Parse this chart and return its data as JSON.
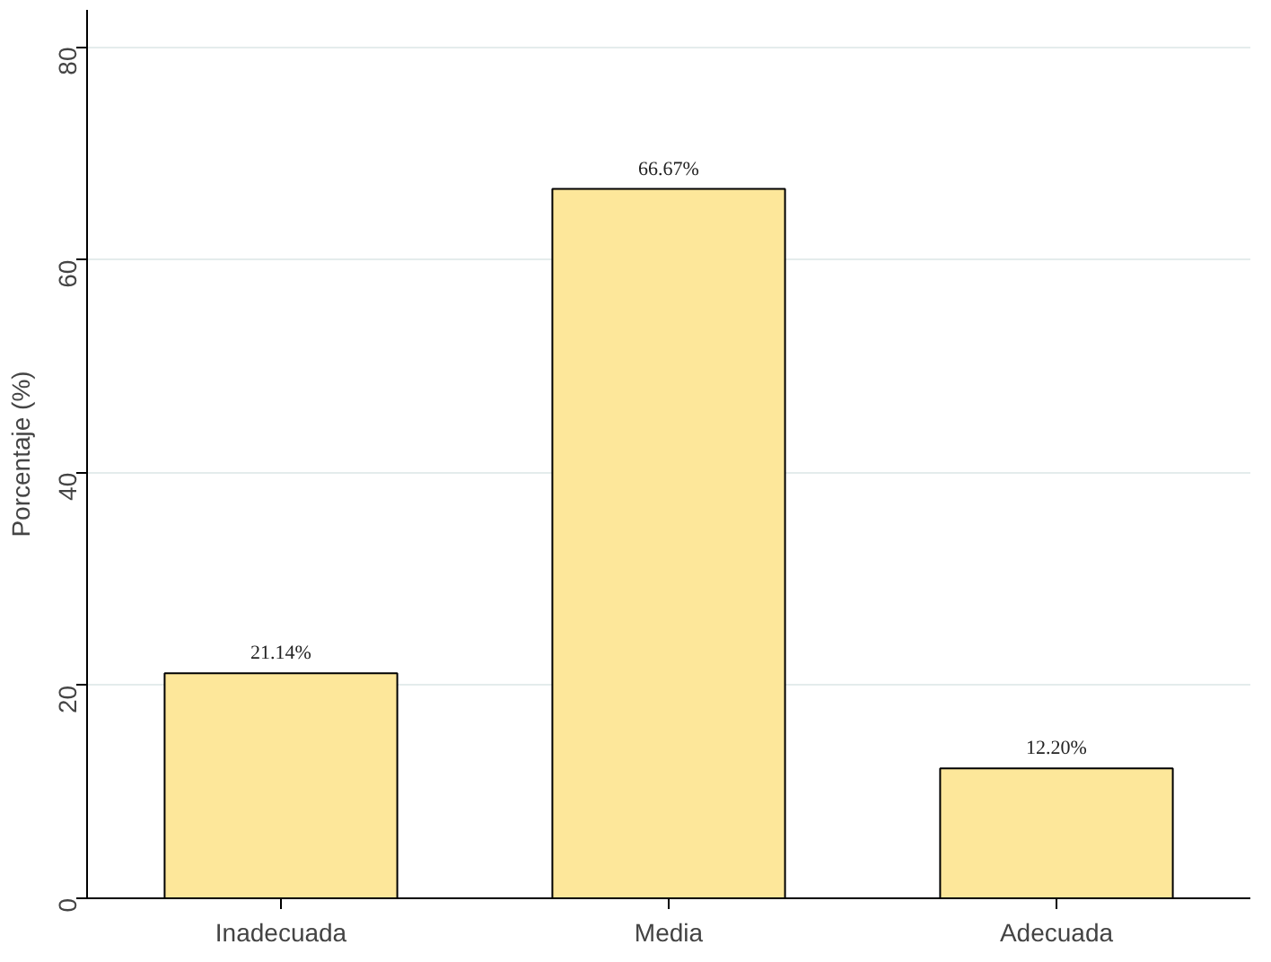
{
  "chart_data": {
    "type": "bar",
    "ylabel": "Porcentaje (%)",
    "categories": [
      "Inadecuada",
      "Media",
      "Adecuada"
    ],
    "values": [
      21.14,
      66.67,
      12.2
    ],
    "value_labels": [
      "21.14%",
      "66.67%",
      "12.20%"
    ],
    "color": "#fde79a",
    "ylim": [
      0,
      83.5
    ],
    "yticks": [
      0,
      20,
      40,
      60,
      80
    ],
    "grid": "y"
  }
}
